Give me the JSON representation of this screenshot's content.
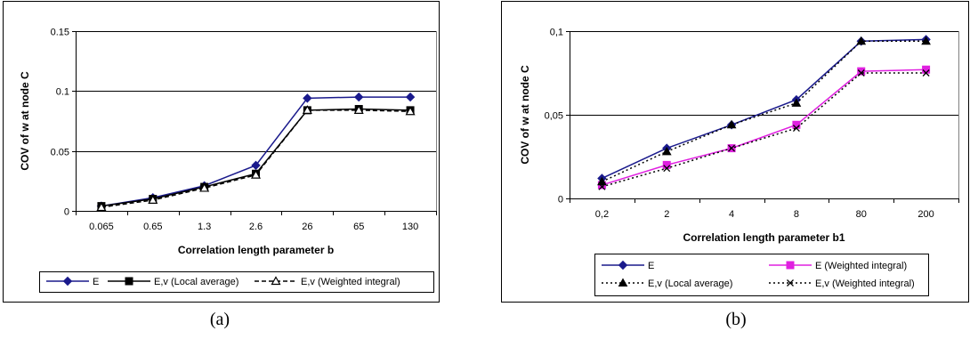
{
  "chart_data": [
    {
      "type": "line",
      "panel_label": "(a)",
      "xlabel": "Correlation length parameter b",
      "ylabel": "COV of w at node C",
      "categories": [
        "0.065",
        "0.65",
        "1.3",
        "2.6",
        "26",
        "65",
        "130"
      ],
      "ylim": [
        0,
        0.15
      ],
      "yticks": [
        0,
        0.05,
        0.1,
        0.15
      ],
      "ytick_labels": [
        "0",
        "0.05",
        "0.1",
        "0.15"
      ],
      "grid": true,
      "legend_position": "bottom",
      "series": [
        {
          "name": "E",
          "values": [
            0.004,
            0.011,
            0.021,
            0.038,
            0.094,
            0.095,
            0.095
          ],
          "color": "#1a1a8c",
          "marker": "diamond",
          "dash": "solid"
        },
        {
          "name": "E,v (Local average)",
          "values": [
            0.004,
            0.01,
            0.02,
            0.031,
            0.084,
            0.085,
            0.084
          ],
          "color": "#000000",
          "marker": "square",
          "dash": "solid"
        },
        {
          "name": "E,v (Weighted integral)",
          "values": [
            0.003,
            0.009,
            0.019,
            0.03,
            0.084,
            0.084,
            0.083
          ],
          "color": "#000000",
          "marker": "triangle-open",
          "dash": "dashed"
        }
      ]
    },
    {
      "type": "line",
      "panel_label": "(b)",
      "xlabel": "Correlation length parameter b1",
      "ylabel": "COV of w at node C",
      "categories": [
        "0,2",
        "2",
        "4",
        "8",
        "80",
        "200"
      ],
      "ylim": [
        0,
        0.1
      ],
      "yticks": [
        0,
        0.05,
        0.1
      ],
      "ytick_labels": [
        "0",
        "0,05",
        "0,1"
      ],
      "grid": true,
      "legend_position": "bottom",
      "series": [
        {
          "name": "E",
          "values": [
            0.012,
            0.03,
            0.044,
            0.059,
            0.094,
            0.095
          ],
          "color": "#1a1a8c",
          "marker": "diamond",
          "dash": "solid"
        },
        {
          "name": "E (Weighted integral)",
          "values": [
            0.008,
            0.02,
            0.03,
            0.044,
            0.076,
            0.077
          ],
          "color": "#e020e0",
          "marker": "square",
          "dash": "solid"
        },
        {
          "name": "E,v  (Local average)",
          "values": [
            0.01,
            0.028,
            0.044,
            0.057,
            0.094,
            0.094
          ],
          "color": "#000000",
          "marker": "triangle",
          "dash": "dotted"
        },
        {
          "name": "E,v  (Weighted integral)",
          "values": [
            0.007,
            0.018,
            0.03,
            0.042,
            0.075,
            0.075
          ],
          "color": "#000000",
          "marker": "x",
          "dash": "dotted"
        }
      ]
    }
  ]
}
